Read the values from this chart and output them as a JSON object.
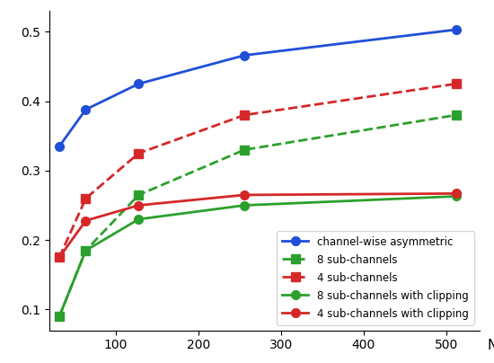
{
  "x": [
    32,
    64,
    128,
    256,
    512
  ],
  "channel_wise_asymmetric": [
    0.335,
    0.388,
    0.425,
    0.466,
    0.503
  ],
  "eight_sub_channels": [
    0.09,
    0.185,
    0.265,
    0.33,
    0.38
  ],
  "four_sub_channels": [
    0.175,
    0.26,
    0.325,
    0.38,
    0.425
  ],
  "eight_sub_channels_clipping": [
    0.09,
    0.185,
    0.23,
    0.25,
    0.263
  ],
  "four_sub_channels_clipping": [
    0.175,
    0.228,
    0.25,
    0.265,
    0.267
  ],
  "colors": {
    "blue": "#1f4fd8",
    "green": "#2ca02c",
    "red": "#d62728"
  },
  "xlabel": "N",
  "ylim": [
    0.07,
    0.53
  ],
  "xlim": [
    20,
    540
  ],
  "xticks": [
    100,
    200,
    300,
    400,
    500
  ],
  "yticks": [
    0.1,
    0.2,
    0.3,
    0.4,
    0.5
  ],
  "legend_entries": [
    "channel-wise asymmetric",
    "8 sub-channels",
    "4 sub-channels",
    "8 sub-channels with clipping",
    "4 sub-channels with clipping"
  ],
  "figsize": [
    5.5,
    4.04
  ],
  "dpi": 100
}
